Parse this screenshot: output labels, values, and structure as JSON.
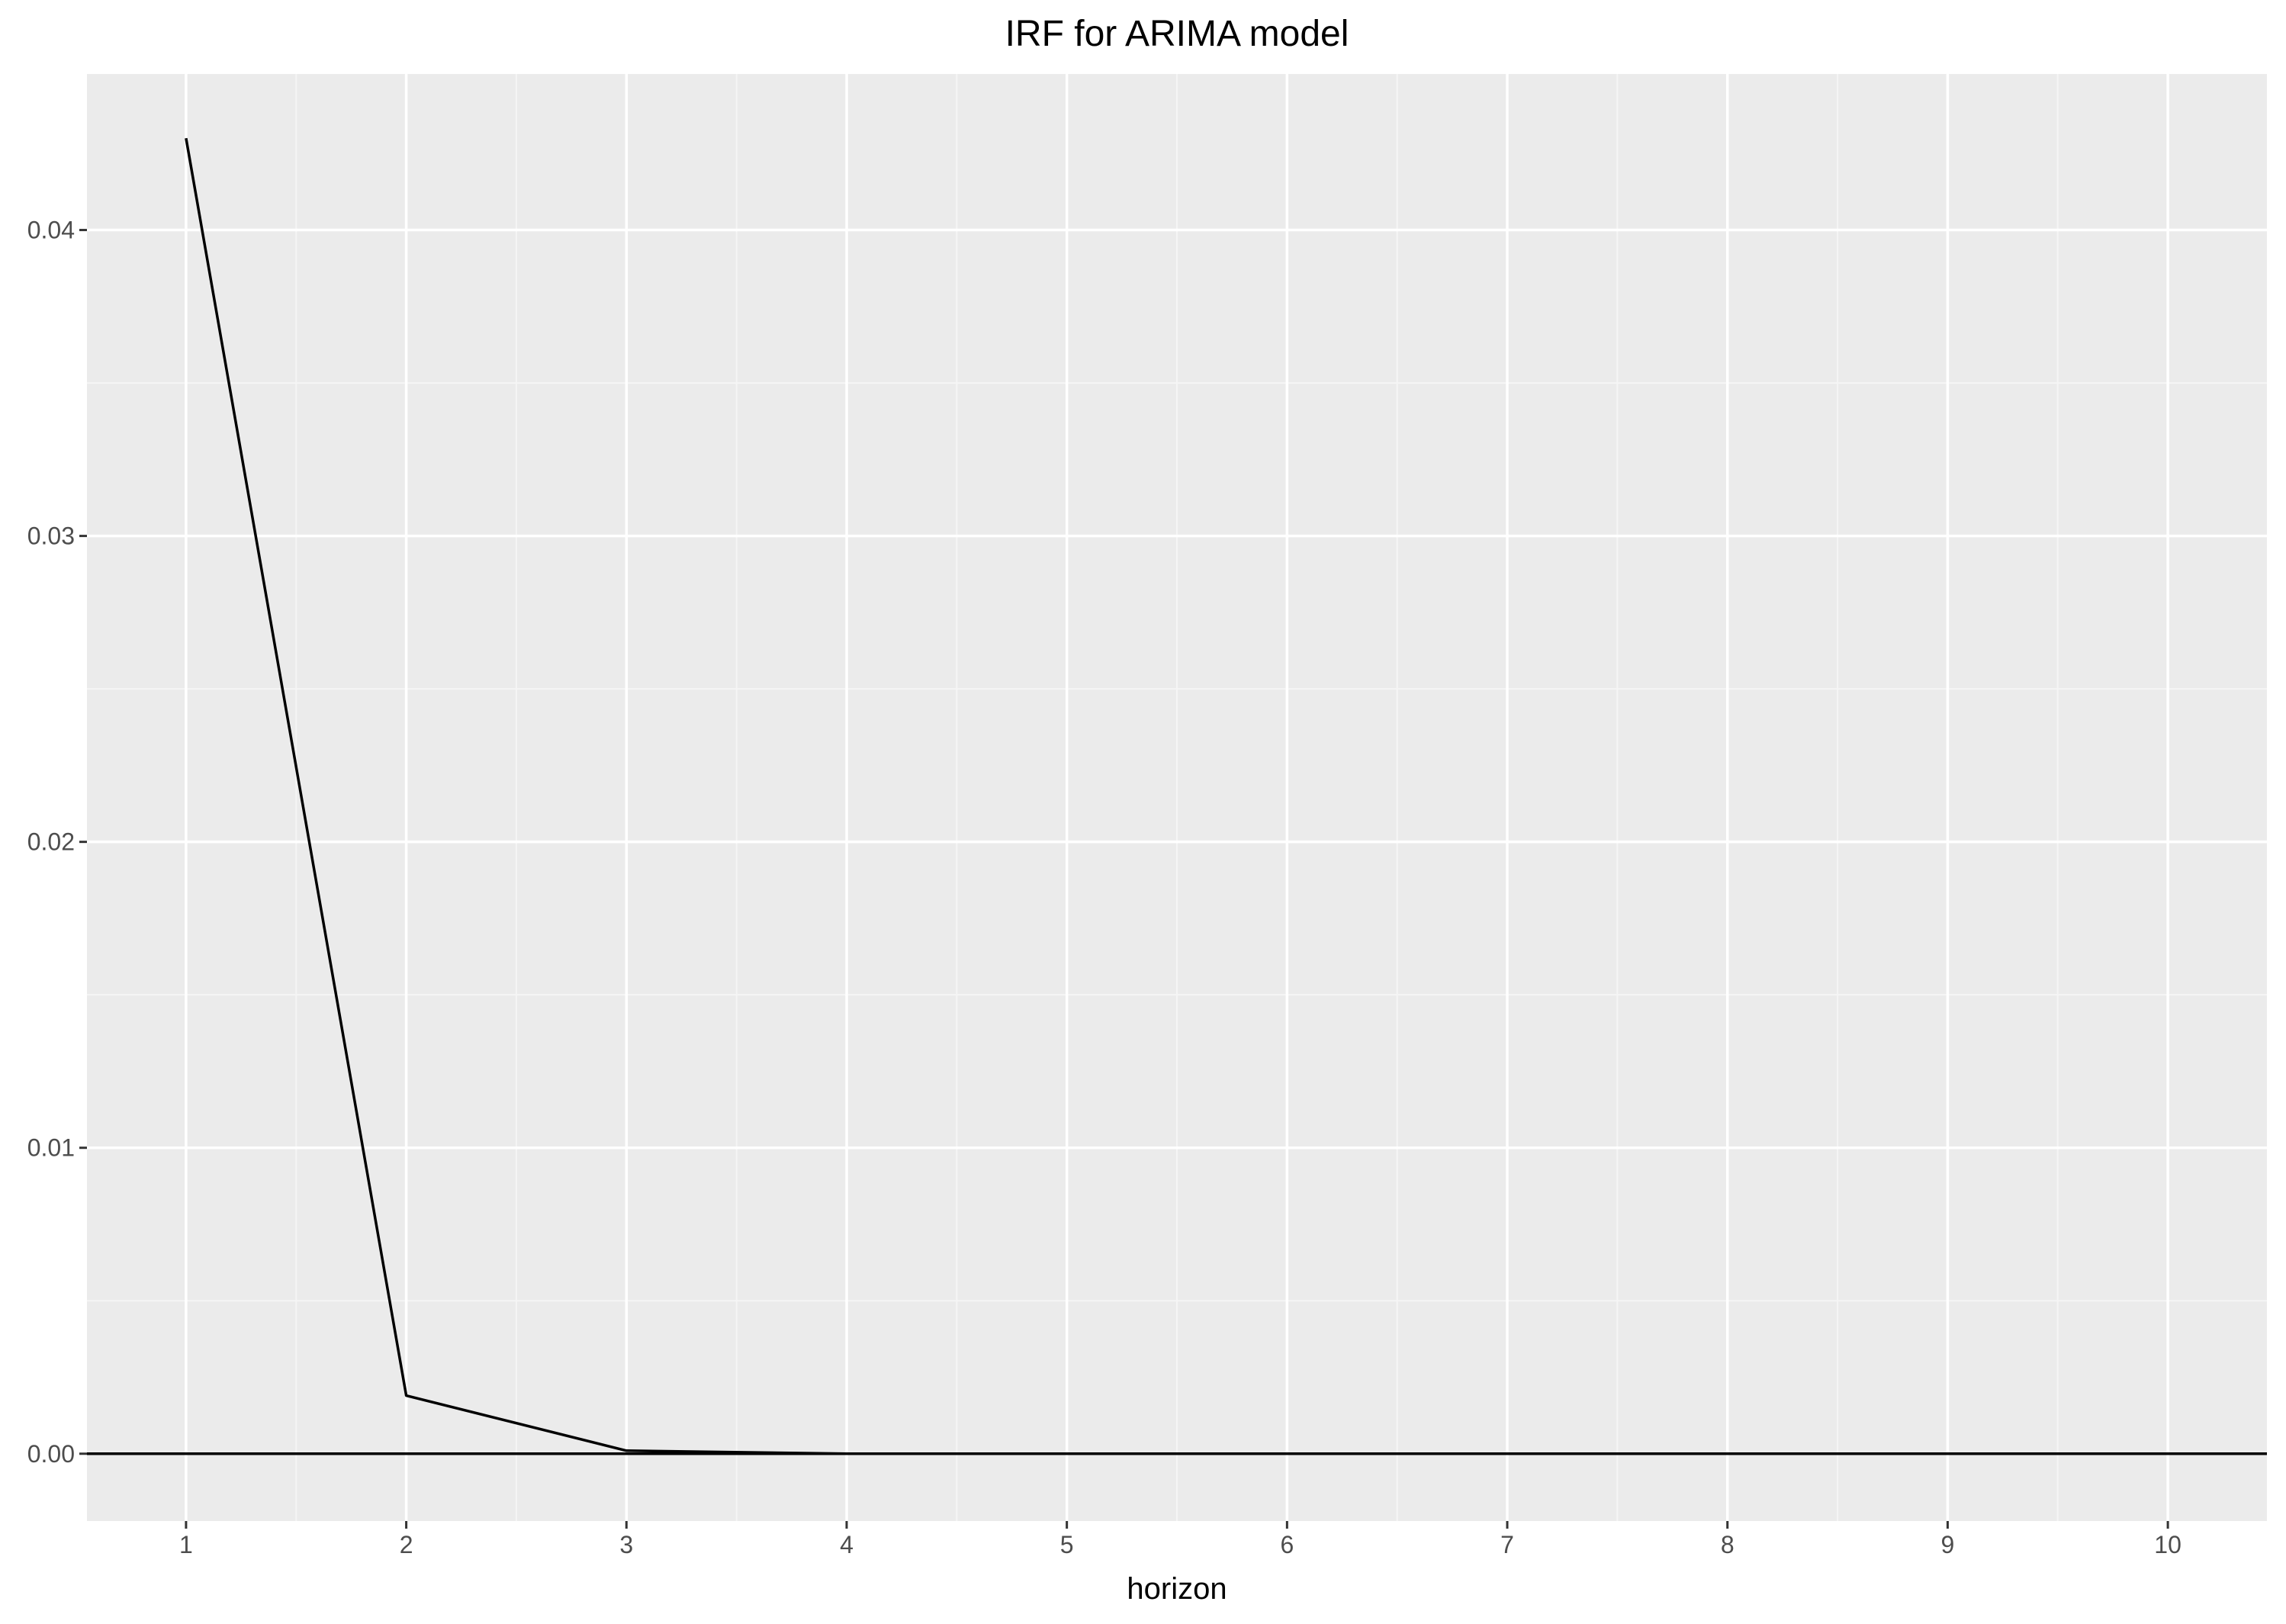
{
  "chart_data": {
    "type": "line",
    "title": "IRF for ARIMA model",
    "xlabel": "horizon",
    "ylabel": "",
    "x": [
      1,
      2,
      3,
      4,
      5,
      6,
      7,
      8,
      9,
      10
    ],
    "series": [
      {
        "values": [
          0.043,
          0.0019,
          0.0001,
          0.0,
          0.0,
          0.0,
          0.0,
          0.0,
          0.0,
          0.0
        ]
      }
    ],
    "reference_line": {
      "y": 0.0
    },
    "xlim": [
      0.55,
      10.45
    ],
    "ylim": [
      -0.0022,
      0.0451
    ],
    "xticks": [
      1,
      2,
      3,
      4,
      5,
      6,
      7,
      8,
      9,
      10
    ],
    "xtick_labels": [
      "1",
      "2",
      "3",
      "4",
      "5",
      "6",
      "7",
      "8",
      "9",
      "10"
    ],
    "yticks": [
      0.0,
      0.01,
      0.02,
      0.03,
      0.04
    ],
    "ytick_labels": [
      "0.00",
      "0.01",
      "0.02",
      "0.03",
      "0.04"
    ],
    "grid": true,
    "legend": "none"
  },
  "colors": {
    "panel_background": "#ebebeb",
    "grid_major": "#ffffff",
    "grid_minor": "#f5f5f5",
    "line": "#000000",
    "tick_label": "#4d4d4d",
    "tick_mark": "#333333"
  }
}
